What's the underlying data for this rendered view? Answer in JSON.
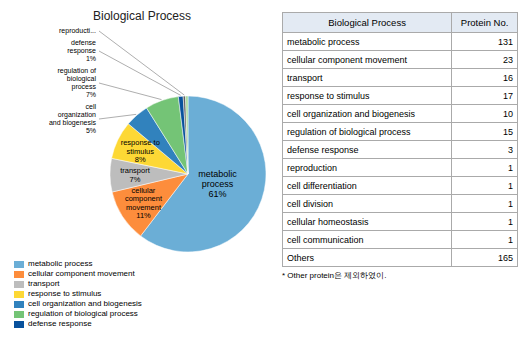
{
  "chart_data": [
    {
      "type": "pie",
      "title": "Biological Process",
      "categories": [
        "metabolic process",
        "cellular component movement",
        "transport",
        "response to stimulus",
        "cell organization and biogenesis",
        "regulation of biological process",
        "defense response",
        null,
        null
      ],
      "values": [
        61,
        11,
        7,
        8,
        5,
        7,
        1,
        0.5,
        0.5
      ],
      "value_labels": [
        "metabolic\nprocess\n61%",
        "cellular\ncomponent\nmovement\n11%",
        "transport\n7%",
        "response to\nstimulus\n8%",
        "cell\norganization\nand biogenesis\n5%",
        "regulation of\nbiological\nprocess\n7%",
        "defense\nresponse\n1%",
        "reproducti...",
        null
      ],
      "colors": [
        "#6baed6",
        "#fd8d3c",
        "#bdbdbd",
        "#fdd835",
        "#3182bd",
        "#74c476",
        "#08519c",
        "#636363",
        "#a1d99b"
      ],
      "legend": "lower left"
    },
    {
      "type": "table",
      "headers": [
        "Biological Process",
        "Protein No."
      ],
      "rows": [
        [
          "metabolic process",
          131
        ],
        [
          "cellular component movement",
          23
        ],
        [
          "transport",
          16
        ],
        [
          "response to stimulus",
          17
        ],
        [
          "cell organization and biogenesis",
          10
        ],
        [
          "regulation of biological process",
          15
        ],
        [
          "defense response",
          3
        ],
        [
          "reproduction",
          1
        ],
        [
          "cell differentiation",
          1
        ],
        [
          "cell division",
          1
        ],
        [
          "cellular homeostasis",
          1
        ],
        [
          "cell communication",
          1
        ],
        [
          "Others",
          165
        ]
      ],
      "note": "* Other protein은 제외하였이."
    }
  ]
}
